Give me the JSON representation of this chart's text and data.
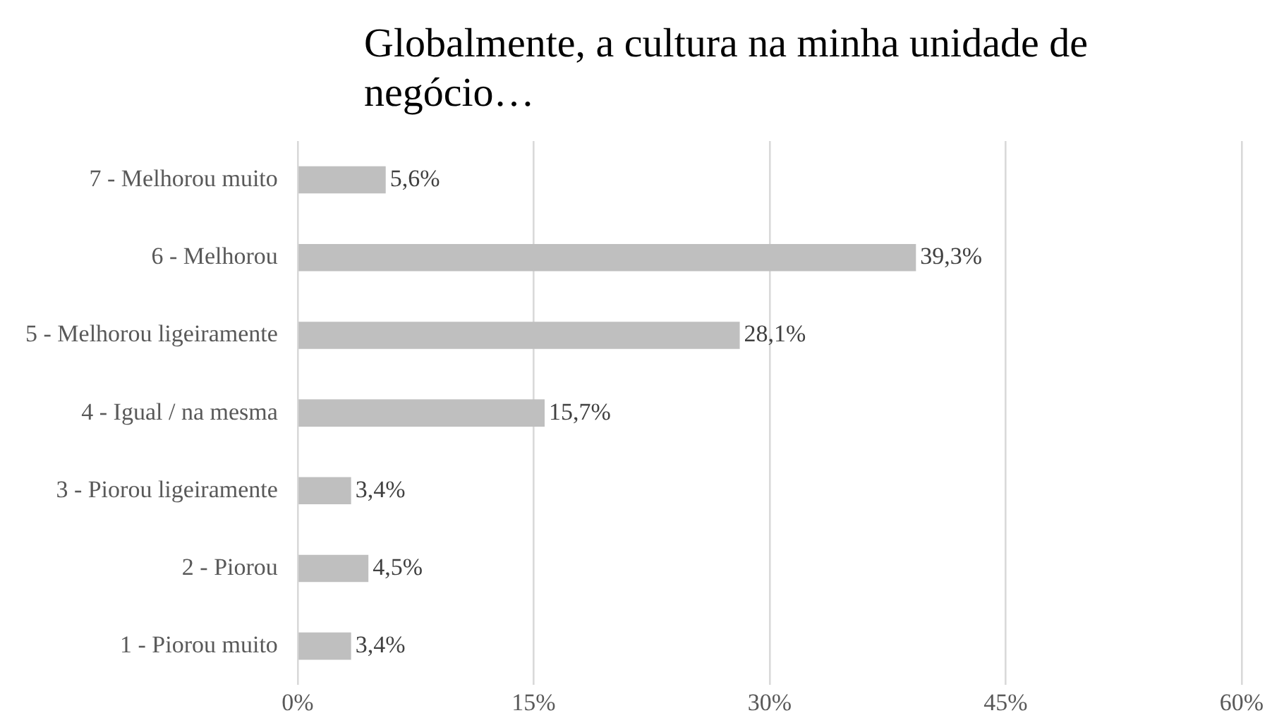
{
  "chart_data": {
    "type": "bar",
    "orientation": "horizontal",
    "title": "Globalmente, a cultura na minha unidade de negócio…",
    "categories": [
      "7 - Melhorou muito",
      "6 - Melhorou",
      "5 - Melhorou ligeiramente",
      "4 - Igual / na mesma",
      "3 - Piorou ligeiramente",
      "2 - Piorou",
      "1 - Piorou muito"
    ],
    "values": [
      5.6,
      39.3,
      28.1,
      15.7,
      3.4,
      4.5,
      3.4
    ],
    "value_labels": [
      "5,6%",
      "39,3%",
      "28,1%",
      "15,7%",
      "3,4%",
      "4,5%",
      "3,4%"
    ],
    "color": "#bfbfbf",
    "xlim": [
      0,
      60
    ],
    "xticks": [
      {
        "value": 0,
        "label": "0%"
      },
      {
        "value": 15,
        "label": "15%"
      },
      {
        "value": 30,
        "label": "30%"
      },
      {
        "value": 45,
        "label": "45%"
      },
      {
        "value": 60,
        "label": "60%"
      }
    ],
    "grid": "x",
    "legend": false
  }
}
